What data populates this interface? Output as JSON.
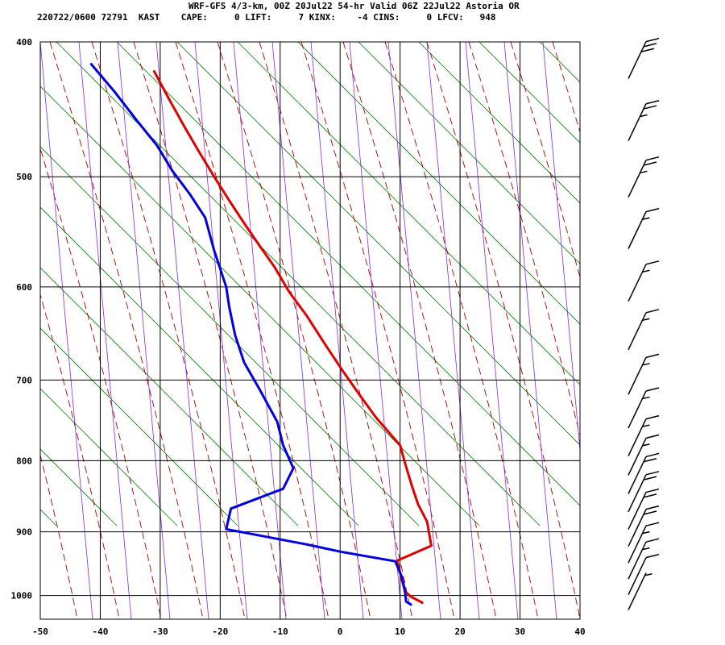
{
  "header": {
    "line1": "WRF-GFS 4/3-km, 00Z 20Jul22 54-hr Valid 06Z 22Jul22 Astoria OR",
    "line2": "220722/0600 72791  KAST    CAPE:     0 LIFT:     7 KINX:    -4 CINS:     0 LFCV:   948"
  },
  "chart_data": {
    "type": "line",
    "title": "WRF-GFS 4/3-km, 00Z 20Jul22 54-hr Valid 06Z 22Jul22 Astoria OR",
    "xlabel": "",
    "ylabel": "",
    "x_ticks": [
      -50,
      -40,
      -30,
      -20,
      -10,
      0,
      10,
      20,
      30,
      40
    ],
    "y_ticks": [
      400,
      500,
      600,
      700,
      800,
      900,
      1000
    ],
    "xlim": [
      -50,
      40
    ],
    "ylim": [
      1040,
      400
    ],
    "grid": true,
    "series": [
      {
        "color": "#e00000",
        "points": [
          [
            13.7,
            1012
          ],
          [
            11.8,
            1002
          ],
          [
            10.8,
            993
          ],
          [
            9.5,
            944
          ],
          [
            15.2,
            921
          ],
          [
            14.5,
            885
          ],
          [
            13.0,
            860
          ],
          [
            12.0,
            835
          ],
          [
            11.0,
            808
          ],
          [
            10.0,
            780
          ],
          [
            6.0,
            745
          ],
          [
            3.5,
            720
          ],
          [
            0.5,
            690
          ],
          [
            -2.5,
            660
          ],
          [
            -5.5,
            630
          ],
          [
            -8.5,
            605
          ],
          [
            -11,
            580
          ],
          [
            -13.5,
            560
          ],
          [
            -16,
            540
          ],
          [
            -18.5,
            520
          ],
          [
            -21,
            500
          ],
          [
            -23.5,
            480
          ],
          [
            -26,
            460
          ],
          [
            -28.5,
            440
          ],
          [
            -31,
            420
          ]
        ]
      },
      {
        "color": "#0000e0",
        "points": [
          [
            11.8,
            1015
          ],
          [
            11.0,
            1010
          ],
          [
            10.8,
            992
          ],
          [
            10.3,
            970
          ],
          [
            9.2,
            945
          ],
          [
            0.0,
            930
          ],
          [
            -5.0,
            920
          ],
          [
            -19.0,
            896
          ],
          [
            -18.2,
            866
          ],
          [
            -9.5,
            838
          ],
          [
            -7.8,
            810
          ],
          [
            -9.5,
            780
          ],
          [
            -10.5,
            750
          ],
          [
            -13.5,
            710
          ],
          [
            -16.0,
            680
          ],
          [
            -17.5,
            650
          ],
          [
            -18.5,
            620
          ],
          [
            -19.0,
            600
          ],
          [
            -21.0,
            565
          ],
          [
            -22.5,
            535
          ],
          [
            -25.0,
            515
          ],
          [
            -28.0,
            495
          ],
          [
            -30.5,
            475
          ],
          [
            -34.0,
            455
          ],
          [
            -37.5,
            435
          ],
          [
            -41.5,
            415
          ]
        ]
      }
    ],
    "background_lines": {
      "isotherms_every": 10,
      "dry_adiabat_color": "#008000",
      "moist_adiabat_color": "#aa0000",
      "mixing_ratio_color": "#8a2be2"
    },
    "wind_barbs": {
      "pressure_levels": [
        415,
        460,
        505,
        550,
        600,
        650,
        700,
        740,
        775,
        800,
        825,
        850,
        875,
        900,
        925,
        950,
        975,
        1000
      ],
      "knots": [
        30,
        25,
        25,
        15,
        15,
        15,
        15,
        15,
        15,
        15,
        20,
        20,
        20,
        20,
        15,
        15,
        10,
        5
      ]
    }
  }
}
